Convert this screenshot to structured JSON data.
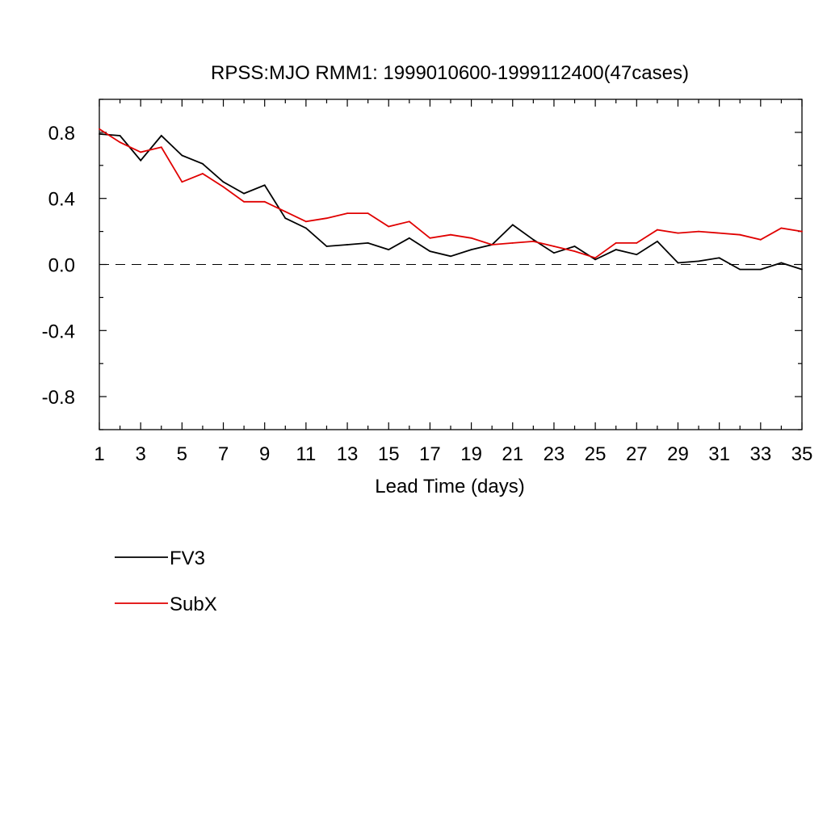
{
  "chart_data": {
    "type": "line",
    "title": "RPSS:MJO RMM1: 1999010600-1999112400(47cases)",
    "xlabel": "Lead Time (days)",
    "ylabel": "",
    "xlim": [
      1,
      35
    ],
    "ylim": [
      -1.0,
      1.0
    ],
    "x_ticks": [
      "1",
      "3",
      "5",
      "7",
      "9",
      "11",
      "13",
      "15",
      "17",
      "19",
      "21",
      "23",
      "25",
      "27",
      "29",
      "31",
      "33",
      "35"
    ],
    "y_ticks": [
      "0.8",
      "0.4",
      "0.0",
      "-0.4",
      "-0.8"
    ],
    "y_tick_values": [
      0.8,
      0.4,
      0.0,
      -0.4,
      -0.8
    ],
    "reference_line": {
      "y": 0.0,
      "style": "dashed"
    },
    "grid": false,
    "legend_position": "below-left",
    "x": [
      1,
      2,
      3,
      4,
      5,
      6,
      7,
      8,
      9,
      10,
      11,
      12,
      13,
      14,
      15,
      16,
      17,
      18,
      19,
      20,
      21,
      22,
      23,
      24,
      25,
      26,
      27,
      28,
      29,
      30,
      31,
      32,
      33,
      34,
      35
    ],
    "series": [
      {
        "name": "FV3",
        "color": "#000000",
        "values": [
          0.79,
          0.78,
          0.63,
          0.78,
          0.66,
          0.61,
          0.5,
          0.43,
          0.48,
          0.28,
          0.22,
          0.11,
          0.12,
          0.13,
          0.09,
          0.16,
          0.08,
          0.05,
          0.09,
          0.12,
          0.24,
          0.15,
          0.07,
          0.11,
          0.03,
          0.09,
          0.06,
          0.14,
          0.01,
          0.02,
          0.04,
          -0.03,
          -0.03,
          0.01,
          -0.03
        ]
      },
      {
        "name": "SubX",
        "color": "#e00000",
        "values": [
          0.82,
          0.74,
          0.68,
          0.71,
          0.5,
          0.55,
          0.47,
          0.38,
          0.38,
          0.32,
          0.26,
          0.28,
          0.31,
          0.31,
          0.23,
          0.26,
          0.16,
          0.18,
          0.16,
          0.12,
          0.13,
          0.14,
          0.11,
          0.08,
          0.04,
          0.13,
          0.13,
          0.21,
          0.19,
          0.2,
          0.19,
          0.18,
          0.15,
          0.22,
          0.2
        ]
      }
    ]
  }
}
